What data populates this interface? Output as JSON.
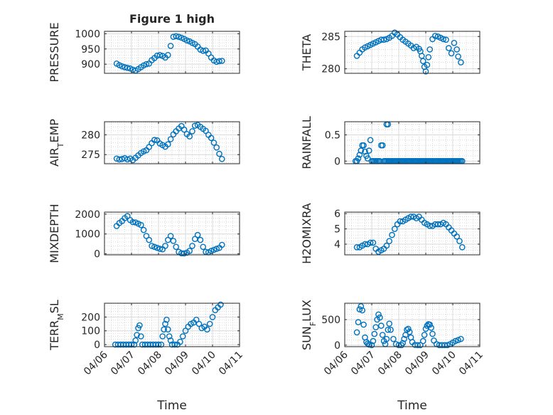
{
  "figure": {
    "title": "Figure 1 high",
    "xlabel": "Time"
  },
  "chart_data": [
    {
      "id": "pressure",
      "type": "scatter",
      "title": "Figure 1 high",
      "ylabel": "PRESSURE",
      "xlabel": "",
      "xlim": [
        "04/06",
        "04/11"
      ],
      "ylim": [
        870,
        1008
      ],
      "yticks": [
        900,
        950,
        1000
      ],
      "show_xticklabels": false,
      "grid": true,
      "color": "#0072BD",
      "x": [
        0.45,
        0.55,
        0.65,
        0.75,
        0.85,
        0.95,
        1.05,
        1.15,
        1.25,
        1.35,
        1.45,
        1.55,
        1.65,
        1.75,
        1.85,
        1.95,
        2.05,
        2.15,
        2.25,
        2.35,
        2.45,
        2.55,
        2.65,
        2.75,
        2.85,
        2.95,
        3.05,
        3.15,
        3.25,
        3.35,
        3.45,
        3.55,
        3.65,
        3.75,
        3.85,
        3.95,
        4.05,
        4.15,
        4.25,
        4.35
      ],
      "y": [
        902,
        897,
        893,
        890,
        888,
        886,
        882,
        879,
        884,
        890,
        896,
        900,
        902,
        913,
        920,
        928,
        930,
        927,
        922,
        930,
        960,
        990,
        992,
        990,
        987,
        983,
        978,
        975,
        970,
        966,
        958,
        948,
        944,
        945,
        935,
        922,
        912,
        908,
        910,
        911
      ]
    },
    {
      "id": "theta",
      "type": "scatter",
      "ylabel": "THETA",
      "xlabel": "",
      "xlim": [
        "04/06",
        "04/11"
      ],
      "ylim": [
        279.3,
        285.8
      ],
      "yticks": [
        280,
        285
      ],
      "show_xticklabels": false,
      "grid": true,
      "color": "#0072BD",
      "x": [
        0.45,
        0.55,
        0.65,
        0.75,
        0.85,
        0.95,
        1.05,
        1.15,
        1.25,
        1.35,
        1.45,
        1.55,
        1.65,
        1.75,
        1.85,
        1.95,
        2.05,
        2.15,
        2.25,
        2.35,
        2.45,
        2.55,
        2.65,
        2.75,
        2.8,
        2.85,
        2.9,
        2.95,
        3.0,
        3.05,
        3.1,
        3.15,
        3.25,
        3.35,
        3.45,
        3.55,
        3.65,
        3.75,
        3.85,
        3.95,
        4.05,
        4.15,
        4.2,
        4.3
      ],
      "y": [
        282.0,
        282.5,
        283.0,
        283.3,
        283.5,
        283.7,
        283.9,
        284.1,
        284.3,
        284.5,
        284.5,
        284.6,
        284.8,
        285.1,
        285.6,
        285.3,
        284.9,
        284.5,
        284.2,
        283.9,
        283.6,
        283.2,
        283.4,
        283.1,
        282.7,
        282.0,
        281.2,
        280.3,
        279.6,
        280.6,
        281.8,
        283.0,
        284.6,
        285.1,
        285.0,
        284.8,
        284.6,
        284.5,
        283.2,
        282.4,
        284.0,
        283.0,
        281.9,
        281.0
      ]
    },
    {
      "id": "air_temp",
      "type": "scatter",
      "ylabel": "AIR_TEMP",
      "xlabel": "",
      "xlim": [
        "04/06",
        "04/11"
      ],
      "ylim": [
        272.7,
        283.3
      ],
      "yticks": [
        275,
        280
      ],
      "show_xticklabels": false,
      "grid": true,
      "color": "#0072BD",
      "x": [
        0.45,
        0.55,
        0.65,
        0.75,
        0.85,
        0.95,
        1.05,
        1.15,
        1.25,
        1.35,
        1.45,
        1.55,
        1.65,
        1.75,
        1.85,
        1.95,
        2.05,
        2.15,
        2.25,
        2.35,
        2.45,
        2.55,
        2.65,
        2.75,
        2.85,
        2.95,
        3.05,
        3.15,
        3.25,
        3.35,
        3.45,
        3.55,
        3.65,
        3.75,
        3.85,
        3.95,
        4.05,
        4.15,
        4.25,
        4.35
      ],
      "y": [
        274.0,
        273.8,
        273.9,
        274.1,
        273.8,
        274.0,
        273.6,
        274.2,
        274.8,
        275.4,
        275.8,
        276.1,
        276.9,
        277.9,
        278.7,
        278.6,
        277.8,
        277.4,
        277.0,
        277.6,
        278.9,
        280.1,
        280.9,
        281.6,
        282.2,
        281.3,
        280.2,
        279.6,
        280.9,
        282.3,
        282.5,
        282.0,
        281.5,
        281.0,
        280.0,
        279.2,
        278.0,
        276.8,
        275.2,
        273.9
      ]
    },
    {
      "id": "rainfall",
      "type": "scatter",
      "ylabel": "RAINFALL",
      "xlabel": "",
      "xlim": [
        "04/06",
        "04/11"
      ],
      "ylim": [
        -0.05,
        0.75
      ],
      "yticks": [
        0,
        0.5
      ],
      "show_xticklabels": false,
      "grid": true,
      "color": "#0072BD",
      "x": [
        0.4,
        0.45,
        0.5,
        0.55,
        0.6,
        0.65,
        0.7,
        0.75,
        0.8,
        0.85,
        0.9,
        0.95,
        1.0,
        1.05,
        1.1,
        1.15,
        1.2,
        1.25,
        1.3,
        1.35,
        1.4,
        1.45,
        1.5,
        1.55,
        1.6,
        1.65,
        1.7,
        1.75,
        1.8,
        1.85,
        1.9,
        1.95,
        2.0,
        2.05,
        2.1,
        2.15,
        2.2,
        2.25,
        2.3,
        2.35,
        2.4,
        2.45,
        2.5,
        2.55,
        2.6,
        2.65,
        2.7,
        2.75,
        2.8,
        2.85,
        2.9,
        2.95,
        3.0,
        3.05,
        3.1,
        3.15,
        3.2,
        3.25,
        3.3,
        3.35,
        3.4,
        3.45,
        3.5,
        3.55,
        3.6,
        3.65,
        3.7,
        3.75,
        3.8,
        3.85,
        3.9,
        3.95,
        4.0,
        4.05,
        4.1,
        4.15,
        4.2,
        4.25,
        4.3,
        4.35,
        1.5,
        1.55,
        1.6
      ],
      "y": [
        0,
        0,
        0.05,
        0.12,
        0.2,
        0.3,
        0.3,
        0.18,
        0.1,
        0.05,
        0.2,
        0.4,
        0,
        0,
        0,
        0,
        0,
        0,
        0,
        0.3,
        0.3,
        0,
        0,
        0.7,
        0.7,
        0,
        0,
        0,
        0,
        0,
        0,
        0,
        0,
        0,
        0,
        0,
        0,
        0,
        0,
        0,
        0,
        0,
        0,
        0,
        0,
        0,
        0,
        0,
        0,
        0,
        0,
        0,
        0,
        0,
        0,
        0,
        0,
        0,
        0,
        0,
        0,
        0,
        0,
        0,
        0,
        0,
        0,
        0,
        0,
        0,
        0,
        0,
        0,
        0,
        0,
        0,
        0,
        0,
        0,
        0,
        0,
        0,
        0
      ]
    },
    {
      "id": "mixdepth",
      "type": "scatter",
      "ylabel": "MIXDEPTH",
      "xlabel": "",
      "xlim": [
        "04/06",
        "04/11"
      ],
      "ylim": [
        -50,
        2100
      ],
      "yticks": [
        0,
        1000,
        2000
      ],
      "show_xticklabels": false,
      "grid": true,
      "color": "#0072BD",
      "x": [
        0.45,
        0.55,
        0.65,
        0.75,
        0.85,
        0.95,
        1.05,
        1.15,
        1.25,
        1.35,
        1.45,
        1.55,
        1.65,
        1.75,
        1.85,
        1.95,
        2.05,
        2.15,
        2.25,
        2.35,
        2.45,
        2.55,
        2.65,
        2.75,
        2.85,
        2.95,
        3.05,
        3.15,
        3.25,
        3.35,
        3.45,
        3.55,
        3.65,
        3.75,
        3.85,
        3.95,
        4.05,
        4.15,
        4.25,
        4.35
      ],
      "y": [
        1400,
        1550,
        1650,
        1800,
        1900,
        1700,
        1600,
        1580,
        1520,
        1450,
        1200,
        900,
        700,
        400,
        350,
        300,
        250,
        230,
        400,
        700,
        900,
        650,
        350,
        100,
        30,
        20,
        60,
        150,
        400,
        750,
        950,
        700,
        350,
        100,
        80,
        150,
        200,
        250,
        300,
        450
      ]
    },
    {
      "id": "h2omixra",
      "type": "scatter",
      "ylabel": "H2OMIXRA",
      "xlabel": "",
      "xlim": [
        "04/06",
        "04/11"
      ],
      "ylim": [
        3.3,
        6.1
      ],
      "yticks": [
        4,
        5,
        6
      ],
      "show_xticklabels": false,
      "grid": true,
      "color": "#0072BD",
      "x": [
        0.45,
        0.55,
        0.65,
        0.75,
        0.85,
        0.95,
        1.05,
        1.15,
        1.25,
        1.35,
        1.45,
        1.55,
        1.65,
        1.75,
        1.85,
        1.95,
        2.05,
        2.15,
        2.25,
        2.35,
        2.45,
        2.55,
        2.65,
        2.75,
        2.85,
        2.95,
        3.05,
        3.15,
        3.25,
        3.35,
        3.45,
        3.55,
        3.65,
        3.75,
        3.85,
        3.95,
        4.05,
        4.15,
        4.25,
        4.35
      ],
      "y": [
        3.8,
        3.8,
        3.9,
        4.0,
        4.0,
        4.1,
        4.1,
        3.7,
        3.5,
        3.6,
        3.7,
        3.9,
        4.2,
        4.6,
        5.0,
        5.3,
        5.5,
        5.5,
        5.6,
        5.7,
        5.8,
        5.8,
        5.7,
        5.8,
        5.6,
        5.4,
        5.3,
        5.2,
        5.2,
        5.3,
        5.3,
        5.3,
        5.4,
        5.3,
        5.1,
        4.9,
        4.7,
        4.5,
        4.2,
        3.8
      ]
    },
    {
      "id": "terr_msl",
      "type": "scatter",
      "ylabel": "TERR_MSL",
      "xlabel": "Time",
      "xlim": [
        "04/06",
        "04/11"
      ],
      "ylim": [
        -15,
        300
      ],
      "yticks": [
        0,
        100,
        200
      ],
      "show_xticklabels": true,
      "xticks": [
        "04/06",
        "04/07",
        "04/08",
        "04/09",
        "04/10",
        "04/11"
      ],
      "grid": true,
      "color": "#0072BD",
      "x": [
        0.4,
        0.5,
        0.6,
        0.7,
        0.8,
        0.9,
        1.0,
        1.1,
        1.15,
        1.2,
        1.25,
        1.3,
        1.35,
        1.4,
        1.5,
        1.6,
        1.7,
        1.8,
        1.9,
        2.0,
        2.1,
        2.15,
        2.2,
        2.25,
        2.3,
        2.35,
        2.4,
        2.45,
        2.5,
        2.6,
        2.7,
        2.8,
        2.9,
        3.0,
        3.1,
        3.2,
        3.3,
        3.4,
        3.5,
        3.6,
        3.7,
        3.8,
        3.9,
        4.0,
        4.1,
        4.2,
        4.3
      ],
      "y": [
        0,
        0,
        0,
        0,
        0,
        0,
        0,
        0,
        30,
        70,
        120,
        140,
        60,
        0,
        0,
        0,
        0,
        0,
        0,
        0,
        0,
        60,
        110,
        150,
        180,
        110,
        60,
        30,
        0,
        0,
        0,
        20,
        60,
        100,
        130,
        150,
        160,
        180,
        150,
        120,
        130,
        110,
        150,
        200,
        250,
        270,
        290
      ]
    },
    {
      "id": "sun_flux",
      "type": "scatter",
      "ylabel": "SUN_FLUX",
      "xlabel": "Time",
      "xlim": [
        "04/06",
        "04/11"
      ],
      "ylim": [
        -30,
        820
      ],
      "yticks": [
        0,
        500
      ],
      "show_xticklabels": true,
      "xticks": [
        "04/06",
        "04/07",
        "04/08",
        "04/09",
        "04/10",
        "04/11"
      ],
      "grid": true,
      "color": "#0072BD",
      "x": [
        0.45,
        0.5,
        0.55,
        0.6,
        0.65,
        0.7,
        0.75,
        0.8,
        0.85,
        0.9,
        1.0,
        1.05,
        1.1,
        1.15,
        1.2,
        1.25,
        1.3,
        1.35,
        1.4,
        1.45,
        1.5,
        1.55,
        1.6,
        1.65,
        1.7,
        1.8,
        1.9,
        2.0,
        2.1,
        2.15,
        2.2,
        2.25,
        2.3,
        2.35,
        2.4,
        2.45,
        2.5,
        2.6,
        2.7,
        2.8,
        2.9,
        2.95,
        3.0,
        3.05,
        3.1,
        3.15,
        3.2,
        3.25,
        3.3,
        3.4,
        3.5,
        3.6,
        3.7,
        3.8,
        3.9,
        4.0,
        4.1,
        4.2,
        4.3
      ],
      "y": [
        250,
        450,
        700,
        760,
        680,
        400,
        150,
        60,
        30,
        10,
        0,
        80,
        220,
        350,
        500,
        600,
        540,
        380,
        200,
        80,
        20,
        120,
        300,
        420,
        300,
        120,
        20,
        0,
        0,
        40,
        120,
        200,
        300,
        320,
        260,
        150,
        60,
        5,
        0,
        0,
        80,
        200,
        320,
        380,
        410,
        400,
        340,
        220,
        90,
        20,
        0,
        0,
        0,
        0,
        20,
        50,
        80,
        100,
        120
      ]
    }
  ]
}
